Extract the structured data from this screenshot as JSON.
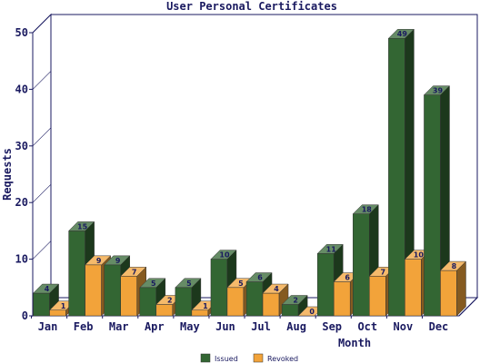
{
  "chart_data": {
    "type": "bar",
    "title": "User Personal Certificates",
    "xlabel": "Month",
    "ylabel": "Requests",
    "categories": [
      "Jan",
      "Feb",
      "Mar",
      "Apr",
      "May",
      "Jun",
      "Jul",
      "Aug",
      "Sep",
      "Oct",
      "Nov",
      "Dec"
    ],
    "ylim": [
      0,
      50
    ],
    "yticks": [
      0,
      10,
      20,
      30,
      40,
      50
    ],
    "grid": false,
    "legend_position": "bottom",
    "series": [
      {
        "name": "Issued",
        "color": "#336633",
        "values": [
          4,
          15,
          9,
          5,
          5,
          10,
          6,
          2,
          11,
          18,
          49,
          39
        ]
      },
      {
        "name": "Revoked",
        "color": "#f2a33a",
        "values": [
          1,
          9,
          7,
          2,
          1,
          5,
          4,
          0,
          6,
          7,
          10,
          8
        ]
      }
    ]
  }
}
